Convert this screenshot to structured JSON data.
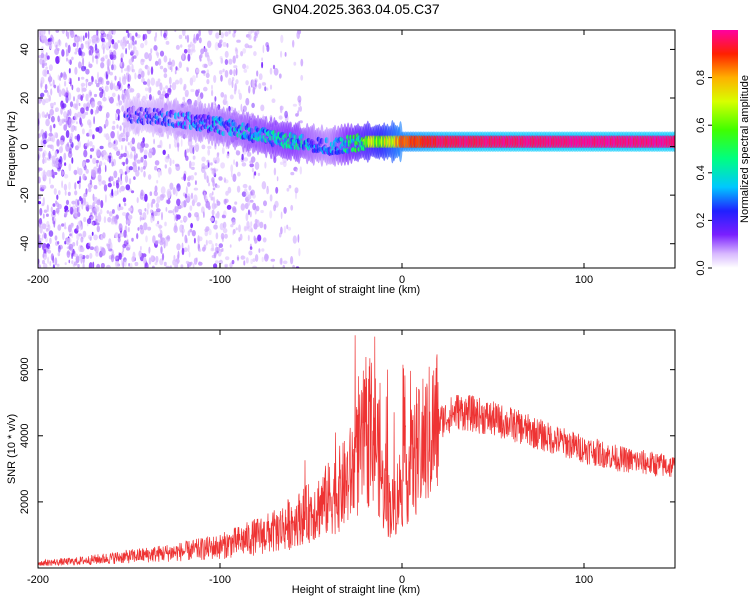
{
  "title": "GN04.2025.363.04.05.C37",
  "chart_data": [
    {
      "type": "heatmap",
      "xlabel": "Height of straight line (km)",
      "ylabel": "Frequency (Hz)",
      "xlim": [
        -200,
        150
      ],
      "ylim": [
        -50,
        48
      ],
      "xticks": [
        -200,
        -100,
        0,
        100
      ],
      "xtick_labels": [
        "-200",
        "-100",
        "0",
        "100"
      ],
      "yticks": [
        -40,
        -20,
        0,
        20,
        40
      ],
      "ytick_labels": [
        "-40",
        "-20",
        "0",
        "20",
        "40"
      ],
      "colorbar": {
        "label": "Normalized spectral amplitude",
        "range": [
          0,
          1
        ],
        "ticks": [
          0.0,
          0.2,
          0.4,
          0.6,
          0.8
        ],
        "tick_labels": [
          "0.0",
          "0.2",
          "0.4",
          "0.6",
          "0.8"
        ]
      },
      "ridge": {
        "x": [
          -150,
          -130,
          -110,
          -90,
          -75,
          -60,
          -50,
          -40,
          -30,
          -20,
          -10,
          0,
          20,
          50,
          80,
          100,
          150
        ],
        "freq": [
          13,
          12,
          10,
          7,
          4,
          2,
          1,
          0,
          1,
          2,
          2,
          2,
          2,
          2,
          2,
          2,
          2
        ],
        "amplitude": [
          0.15,
          0.2,
          0.25,
          0.3,
          0.35,
          0.38,
          0.3,
          0.25,
          0.4,
          0.55,
          0.7,
          0.85,
          0.95,
          0.97,
          0.98,
          0.98,
          0.98
        ]
      }
    },
    {
      "type": "line",
      "xlabel": "Height of straight line (km)",
      "ylabel": "SNR (10 * v/v)",
      "xlim": [
        -200,
        150
      ],
      "ylim": [
        0,
        7200
      ],
      "xticks": [
        -200,
        -100,
        0,
        100
      ],
      "xtick_labels": [
        "-200",
        "-100",
        "0",
        "100"
      ],
      "yticks": [
        2000,
        4000,
        6000
      ],
      "ytick_labels": [
        "2000",
        "4000",
        "6000"
      ],
      "color": "#ee3333",
      "envelope": {
        "x": [
          -200,
          -180,
          -160,
          -140,
          -120,
          -100,
          -90,
          -80,
          -70,
          -60,
          -50,
          -40,
          -30,
          -25,
          -20,
          -15,
          -10,
          -5,
          0,
          10,
          20,
          30,
          40,
          60,
          80,
          100,
          120,
          150
        ],
        "y": [
          150,
          200,
          300,
          400,
          500,
          650,
          800,
          950,
          1100,
          1400,
          1700,
          2100,
          2600,
          3200,
          3800,
          4300,
          2200,
          1800,
          2600,
          3600,
          4400,
          4750,
          4650,
          4350,
          3950,
          3600,
          3300,
          3050
        ]
      },
      "spikes": [
        {
          "x": -15,
          "y": 7000
        },
        {
          "x": -18,
          "y": 6100
        },
        {
          "x": -12,
          "y": 5600
        },
        {
          "x": -8,
          "y": 6000
        },
        {
          "x": -24,
          "y": 5800
        }
      ]
    }
  ]
}
